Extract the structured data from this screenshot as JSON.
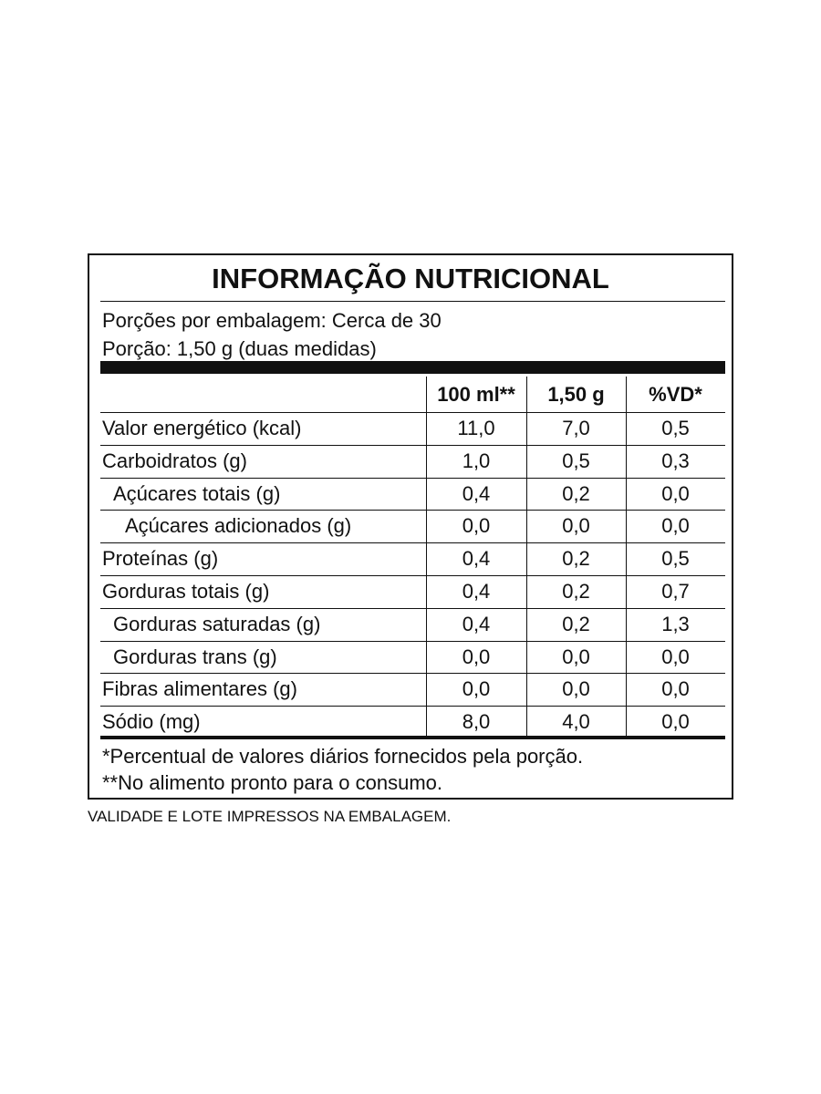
{
  "title": "INFORMAÇÃO NUTRICIONAL",
  "servings": [
    "Porções por embalagem: Cerca de 30",
    "Porção: 1,50 g (duas medidas)"
  ],
  "table": {
    "columns": [
      "100 ml**",
      "1,50 g",
      "%VD*"
    ],
    "rows": [
      [
        "Valor energético (kcal)",
        "11,0",
        "7,0",
        "0,5"
      ],
      [
        "Carboidratos (g)",
        "1,0",
        "0,5",
        "0,3"
      ],
      [
        "Açúcares totais (g)",
        "0,4",
        "0,2",
        "0,0"
      ],
      [
        "Açúcares adicionados (g)",
        "0,0",
        "0,0",
        "0,0"
      ],
      [
        "Proteínas (g)",
        "0,4",
        "0,2",
        "0,5"
      ],
      [
        "Gorduras totais (g)",
        "0,4",
        "0,2",
        "0,7"
      ],
      [
        "Gorduras saturadas (g)",
        "0,4",
        "0,2",
        "1,3"
      ],
      [
        "Gorduras trans (g)",
        "0,0",
        "0,0",
        "0,0"
      ],
      [
        "Fibras alimentares (g)",
        "0,0",
        "0,0",
        "0,0"
      ],
      [
        "Sódio (mg)",
        "8,0",
        "4,0",
        "0,0"
      ]
    ]
  },
  "footnotes": [
    "*Percentual de valores diários fornecidos pela porção.",
    "**No alimento pronto para o consumo."
  ],
  "note": "VALIDADE E LOTE IMPRESSOS NA EMBALAGEM."
}
